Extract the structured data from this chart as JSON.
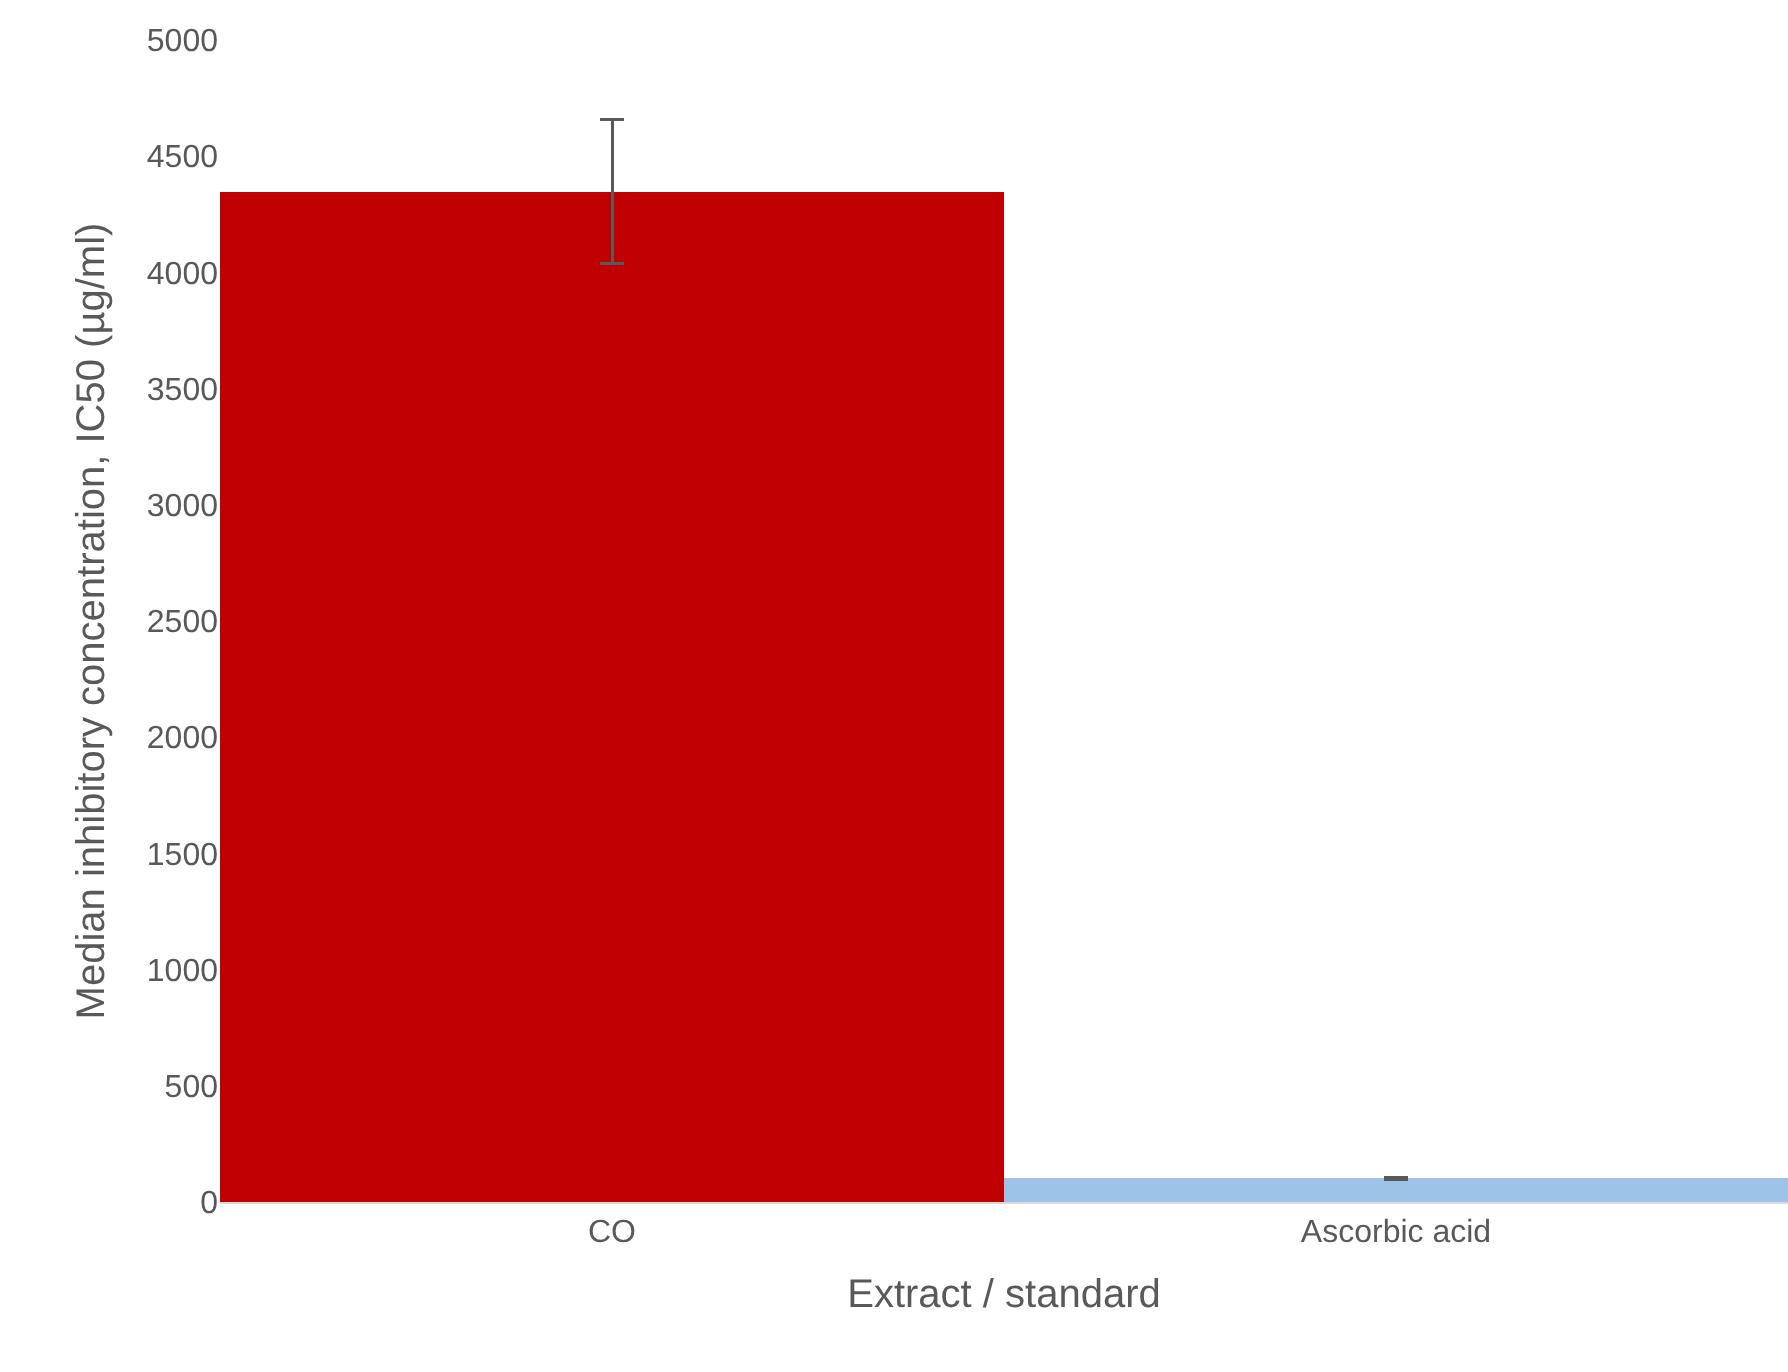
{
  "chart_data": {
    "type": "bar",
    "xlabel": "Extract / standard",
    "ylabel": "Median inhibitory concentration, IC50 (µg/ml)",
    "categories": [
      "CO",
      "Ascorbic acid"
    ],
    "values": [
      4350,
      100
    ],
    "errors": [
      310,
      5
    ],
    "colors": [
      "#c00000",
      "#9dc3e6"
    ],
    "ylim": [
      0,
      5000
    ],
    "yticks": [
      0,
      500,
      1000,
      1500,
      2000,
      2500,
      3000,
      3500,
      4000,
      4500,
      5000
    ],
    "grid": false
  }
}
